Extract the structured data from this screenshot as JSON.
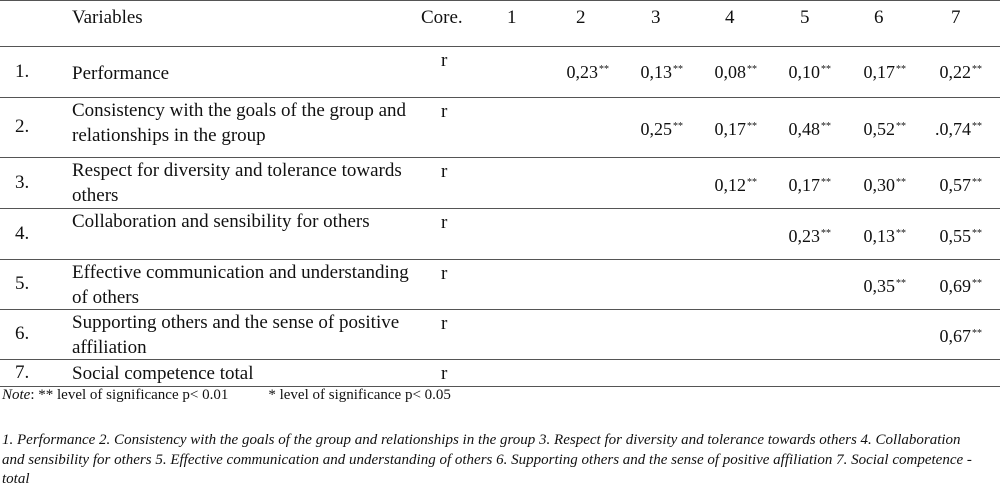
{
  "table": {
    "headers": [
      "Variables",
      "Core.",
      "1",
      "2",
      "3",
      "4",
      "5",
      "6",
      "7"
    ],
    "rows": [
      {
        "num": "1.",
        "label": "Performance",
        "stat": "r",
        "values": [
          "",
          "0,23",
          "0,13",
          "0,08",
          "0,10",
          "0,17",
          "0,22"
        ]
      },
      {
        "num": "2.",
        "label": "Consistency with the goals of the group and relationships in the group",
        "stat": "r",
        "values": [
          "",
          "",
          "0,25",
          "0,17",
          "0,48",
          "0,52",
          ".0,74"
        ]
      },
      {
        "num": "3.",
        "label": "Respect for diversity and tolerance towards others",
        "stat": "r",
        "values": [
          "",
          "",
          "",
          "0,12",
          "0,17",
          "0,30",
          "0,57"
        ]
      },
      {
        "num": "4.",
        "label": "Collaboration and sensibility for others",
        "stat": "r",
        "values": [
          "",
          "",
          "",
          "",
          "0,23",
          "0,13",
          "0,55"
        ]
      },
      {
        "num": "5.",
        "label": "Effective communication and understanding of others",
        "stat": "r",
        "values": [
          "",
          "",
          "",
          "",
          "",
          "0,35",
          "0,69"
        ]
      },
      {
        "num": "6.",
        "label": "Supporting others and the sense of positive affiliation",
        "stat": "r",
        "values": [
          "",
          "",
          "",
          "",
          "",
          "",
          "0,67"
        ]
      },
      {
        "num": "7.",
        "label": "Social competence total",
        "stat": "r",
        "values": [
          "",
          "",
          "",
          "",
          "",
          "",
          ""
        ]
      }
    ],
    "significance_mark": "**"
  },
  "note": {
    "label": "Note",
    "text1": ":  ** level of significance p< 0.01",
    "text2": "* level of significance p< 0.05"
  },
  "legend": "1. Performance 2. Consistency with the goals of the group and relationships in the group 3. Respect for diversity and tolerance towards others 4. Collaboration and sensibility for others 5. Effective communication and understanding of others 6. Supporting others and the sense of positive affiliation 7. Social competence -  total"
}
